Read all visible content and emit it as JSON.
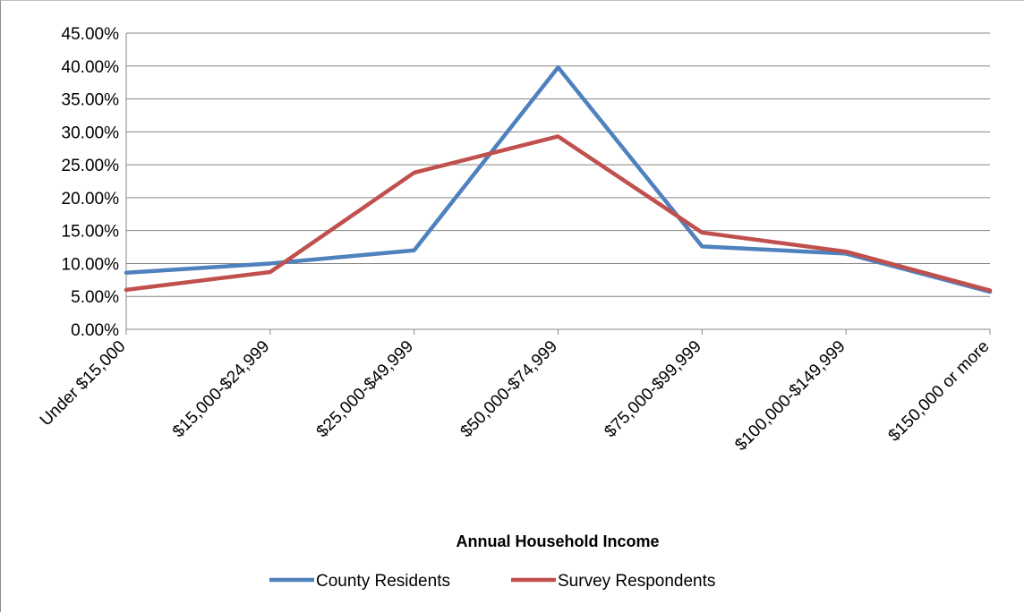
{
  "chart_data": {
    "type": "line",
    "title": "",
    "xlabel": "Annual Household Income",
    "ylabel": "",
    "categories": [
      "Under $15,000",
      "$15,000-$24,999",
      "$25,000-$49,999",
      "$50,000-$74,999",
      "$75,000-$99,999",
      "$100,000-$149,999",
      "$150,000 or more"
    ],
    "series": [
      {
        "name": "County Residents",
        "color": "#4f81bd",
        "values": [
          8.6,
          10.0,
          12.0,
          39.8,
          12.6,
          11.5,
          5.7
        ]
      },
      {
        "name": "Survey Respondents",
        "color": "#c0504d",
        "values": [
          6.0,
          8.7,
          23.8,
          29.3,
          14.7,
          11.8,
          5.9
        ]
      }
    ],
    "ylim": [
      0,
      45
    ],
    "yticks": [
      "0.00%",
      "5.00%",
      "10.00%",
      "15.00%",
      "20.00%",
      "25.00%",
      "30.00%",
      "35.00%",
      "40.00%",
      "45.00%"
    ],
    "grid": true,
    "legend_position": "bottom"
  }
}
